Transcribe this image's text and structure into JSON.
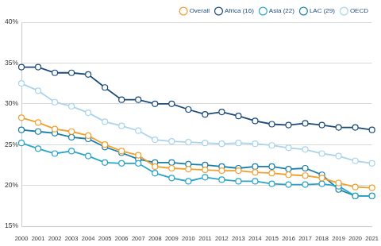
{
  "chart_data": {
    "type": "line",
    "categories": [
      "2000",
      "2001",
      "2002",
      "2003",
      "2004",
      "2005",
      "2006",
      "2007",
      "2008",
      "2009",
      "2010",
      "2011",
      "2012",
      "2013",
      "2014",
      "2015",
      "2016",
      "2017",
      "2018",
      "2019",
      "2020",
      "2021"
    ],
    "series": [
      {
        "name": "Overall",
        "color": "#f0a030",
        "values": [
          28.3,
          27.7,
          26.9,
          26.6,
          26.1,
          25.0,
          24.2,
          23.7,
          22.3,
          22.1,
          22.0,
          21.9,
          21.8,
          21.8,
          21.6,
          21.5,
          21.3,
          21.2,
          20.9,
          20.3,
          19.8,
          19.7
        ]
      },
      {
        "name": "Africa (16)",
        "color": "#1b4a7a",
        "values": [
          34.5,
          34.5,
          33.8,
          33.8,
          33.6,
          32.0,
          30.5,
          30.5,
          30.0,
          30.0,
          29.3,
          28.7,
          29.0,
          28.5,
          27.9,
          27.5,
          27.4,
          27.6,
          27.4,
          27.1,
          27.1,
          26.8
        ]
      },
      {
        "name": "Asia (22)",
        "color": "#29a5c9",
        "values": [
          25.2,
          24.5,
          23.9,
          24.2,
          23.6,
          22.8,
          22.7,
          22.7,
          21.5,
          20.9,
          20.5,
          21.0,
          20.7,
          20.5,
          20.5,
          20.2,
          20.1,
          20.1,
          20.2,
          19.9,
          18.7,
          18.7
        ]
      },
      {
        "name": "LAC (29)",
        "color": "#1a7fa8",
        "values": [
          26.8,
          26.6,
          26.4,
          25.9,
          25.7,
          24.7,
          24.0,
          23.2,
          22.8,
          22.8,
          22.6,
          22.5,
          22.3,
          22.1,
          22.3,
          22.3,
          22.0,
          22.1,
          21.3,
          19.5,
          18.7,
          18.7
        ]
      },
      {
        "name": "OECD",
        "color": "#a9d4ea",
        "values": [
          32.5,
          31.6,
          30.2,
          29.7,
          28.9,
          27.8,
          27.3,
          26.7,
          25.6,
          25.4,
          25.3,
          25.2,
          25.1,
          25.2,
          25.1,
          24.9,
          24.6,
          24.4,
          23.9,
          23.6,
          23.0,
          22.7
        ]
      }
    ],
    "ylim": [
      15,
      40
    ],
    "yticks": [
      {
        "value": 15,
        "label": "15%"
      },
      {
        "value": 20,
        "label": "20%"
      },
      {
        "value": 25,
        "label": "25%"
      },
      {
        "value": 30,
        "label": "30%"
      },
      {
        "value": 35,
        "label": "35%"
      },
      {
        "value": 40,
        "label": "40%"
      }
    ],
    "grid": true,
    "legend": "top-right",
    "marker": "circle"
  }
}
